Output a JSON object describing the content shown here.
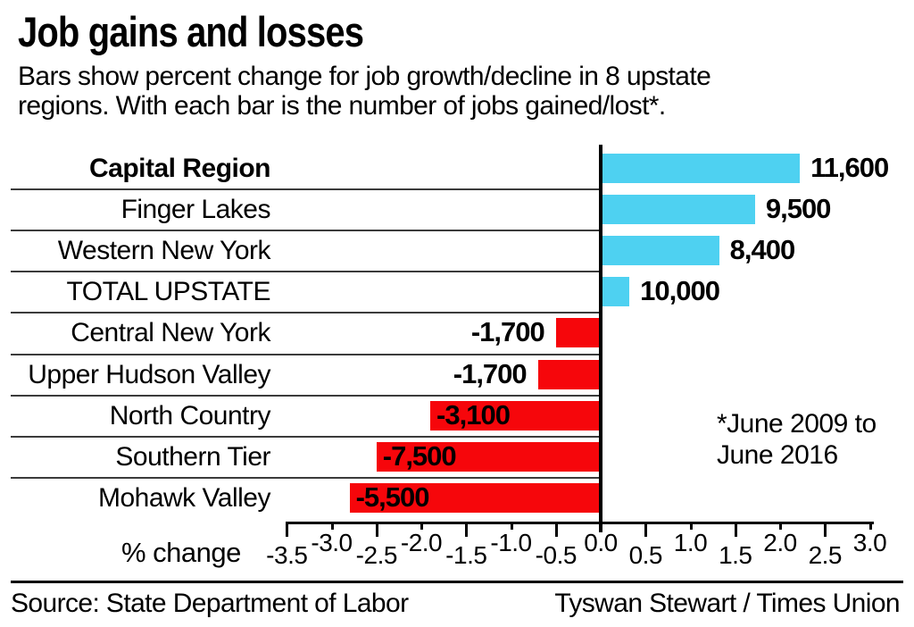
{
  "title": "Job gains and losses",
  "subtitle_lines": [
    "Bars show percent change for job growth/decline in 8 upstate",
    "regions. With each bar is the number of jobs gained/lost*."
  ],
  "chart_data": {
    "type": "bar",
    "orientation": "horizontal",
    "title": "Job gains and losses",
    "xlabel": "% change",
    "xlim": [
      -3.5,
      3.0
    ],
    "x_ticks": [
      -3.5,
      -3.0,
      -2.5,
      -2.0,
      -1.5,
      -1.0,
      -0.5,
      0.0,
      0.5,
      1.0,
      1.5,
      2.0,
      2.5,
      3.0
    ],
    "grid": false,
    "legend": false,
    "categories": [
      "Capital Region",
      "Finger Lakes",
      "Western New York",
      "TOTAL UPSTATE",
      "Central New York",
      "Upper Hudson Valley",
      "North Country",
      "Southern Tier",
      "Mohawk Valley"
    ],
    "emphasized_category": "Capital Region",
    "series": [
      {
        "name": "Percent change (estimated from bar length)",
        "values": [
          2.2,
          1.7,
          1.3,
          0.3,
          -0.5,
          -0.7,
          -1.9,
          -2.5,
          -2.8
        ]
      },
      {
        "name": "Jobs gained/lost",
        "values": [
          11600,
          9500,
          8400,
          10000,
          -1700,
          -1700,
          -3100,
          -7500,
          -5500
        ]
      }
    ],
    "bar_labels": [
      "11,600",
      "9,500",
      "8,400",
      "10,000",
      "-1,700",
      "-1,700",
      "-3,100",
      "-7,500",
      "-5,500"
    ],
    "bar_label_placement": [
      "right-of-bar",
      "right-of-bar",
      "right-of-bar",
      "right-of-bar",
      "left-of-bar",
      "left-of-bar",
      "inside-bar",
      "inside-bar",
      "inside-bar"
    ],
    "positive_color": "#4ed1f1",
    "negative_color": "#f6060b",
    "annotation": "*June 2009 to June 2016"
  },
  "annotation_lines": [
    "*June 2009 to",
    "June 2016"
  ],
  "footer": {
    "source": "Source: State Department of Labor",
    "credit": "Tyswan Stewart / Times Union"
  }
}
